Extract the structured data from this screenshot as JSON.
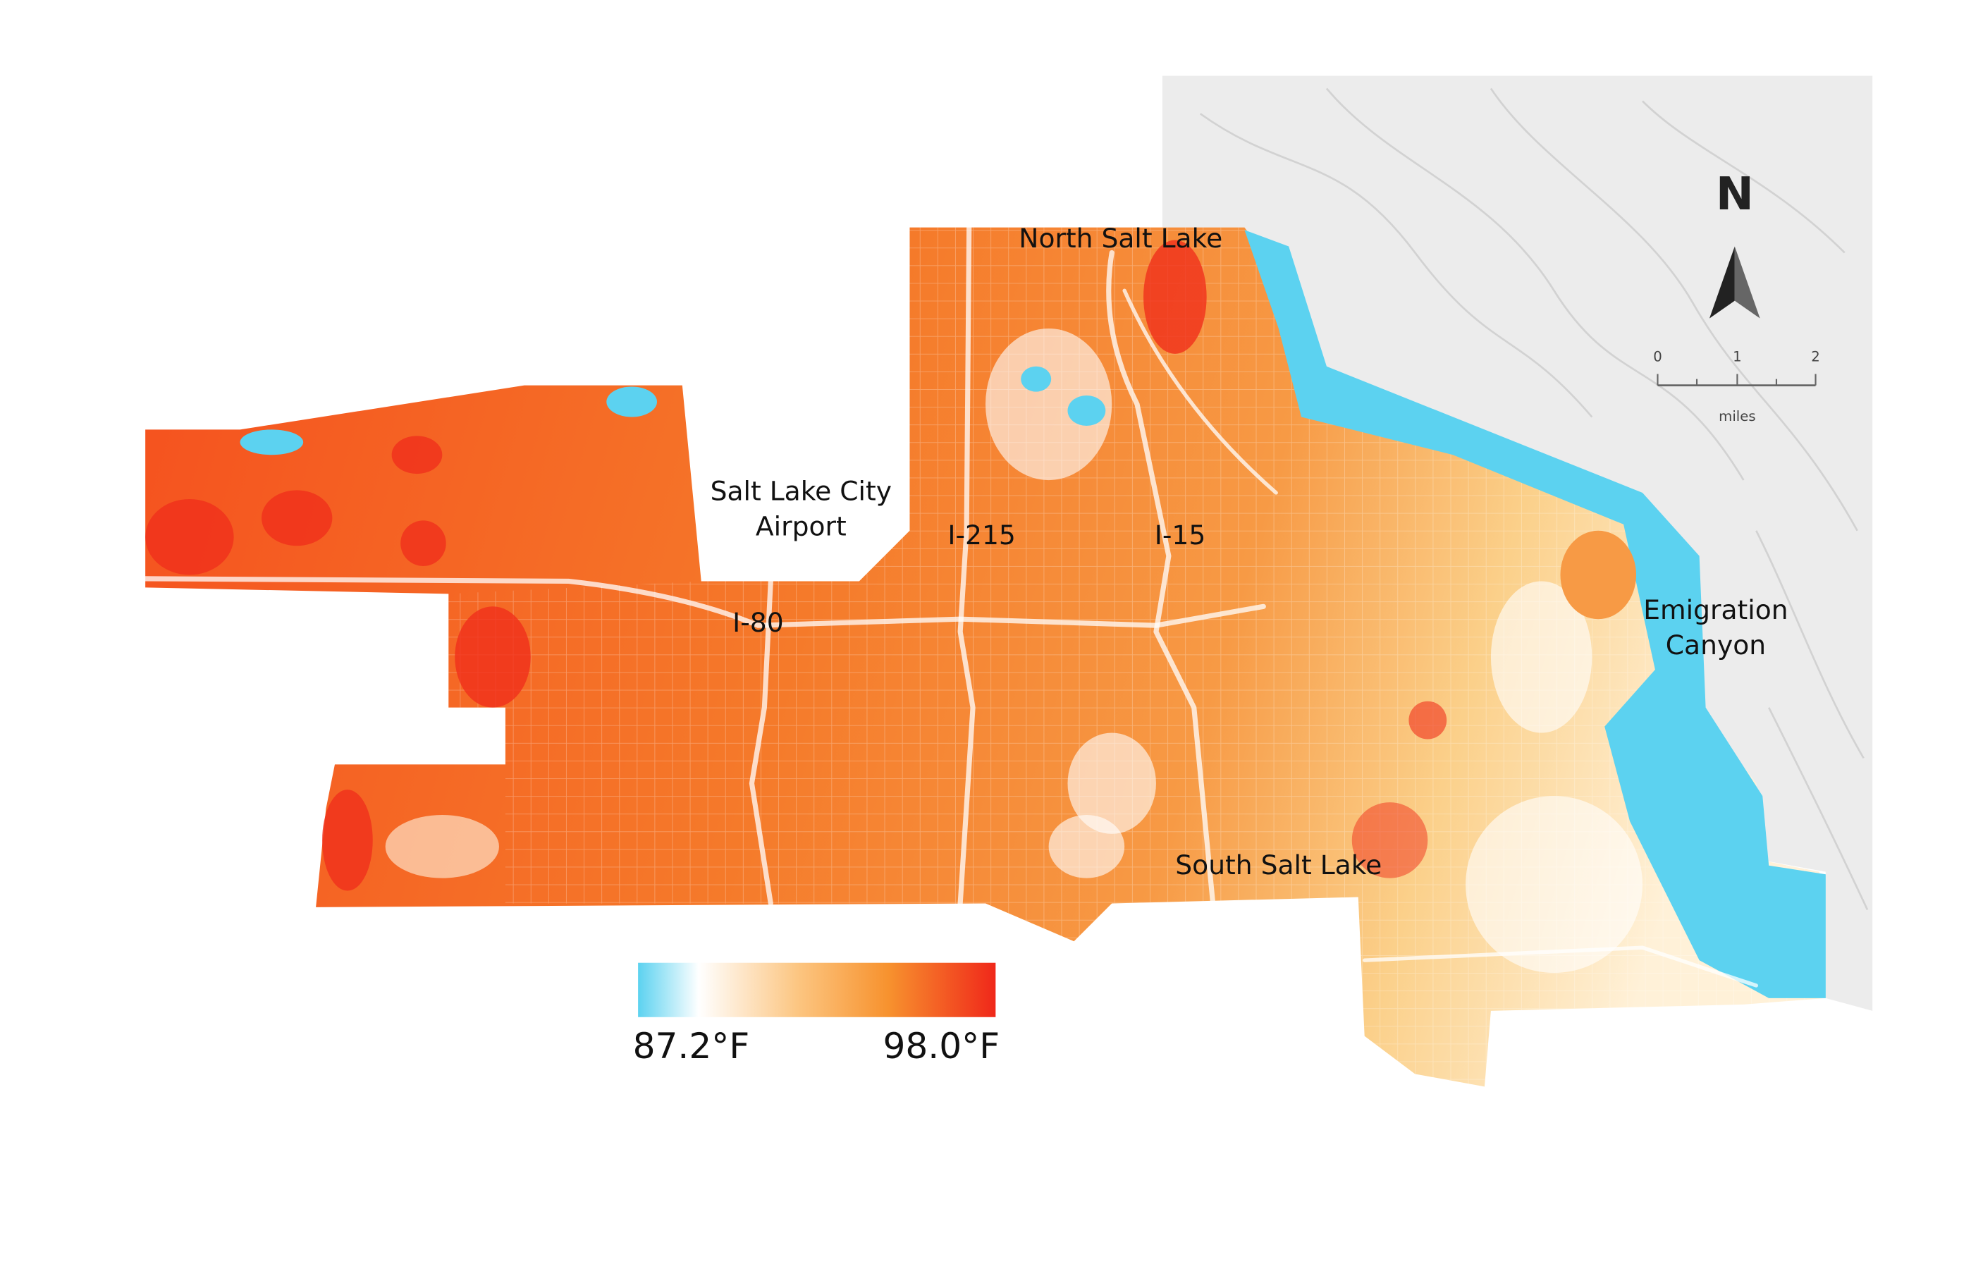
{
  "labels": {
    "north_salt_lake": "North Salt Lake",
    "airport": [
      "Salt Lake City",
      "Airport"
    ],
    "i215": "I-215",
    "i15": "I-15",
    "i80": "I-80",
    "emigration_canyon": [
      "Emigration",
      "Canyon"
    ],
    "south_salt_lake": "South Salt Lake"
  },
  "legend": {
    "min_label": "87.2°F",
    "max_label": "98.0°F"
  },
  "scale_bar": {
    "ticks": [
      "0",
      "1",
      "2"
    ],
    "unit": "miles"
  },
  "north_arrow": "N"
}
